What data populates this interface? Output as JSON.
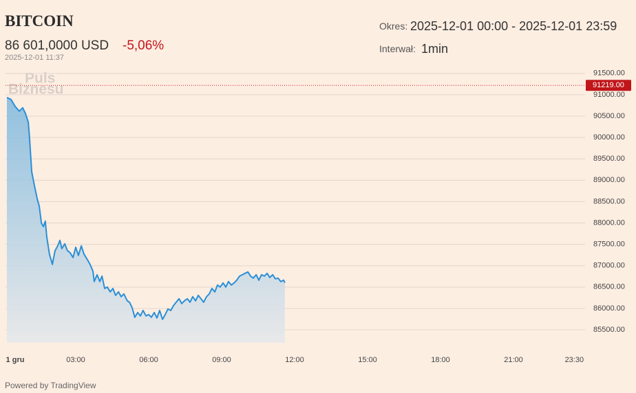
{
  "header": {
    "title": "BITCOIN",
    "price": "86 601,0000 USD",
    "change": "-5,06%",
    "timestamp": "2025-12-01 11:37",
    "period_label": "Okres:",
    "period": "2025-12-01 00:00 - 2025-12-01 23:59",
    "interval_label": "Interwał:",
    "interval": "1min"
  },
  "watermark": [
    "Puls",
    "Biznesu"
  ],
  "footer": "Powered by TradingView",
  "chart_data": {
    "type": "area",
    "color": "#2a8fd6",
    "grid": true,
    "x": [
      0.17,
      0.34,
      0.51,
      0.68,
      0.82,
      0.93,
      1.05,
      1.1,
      1.19,
      1.3,
      1.42,
      1.5,
      1.59,
      1.67,
      1.75,
      1.81,
      1.92,
      2.04,
      2.15,
      2.26,
      2.35,
      2.43,
      2.55,
      2.66,
      2.77,
      2.89,
      3.0,
      3.11,
      3.23,
      3.34,
      3.48,
      3.59,
      3.71,
      3.76,
      3.88,
      3.99,
      4.08,
      4.19,
      4.3,
      4.42,
      4.53,
      4.64,
      4.76,
      4.87,
      4.98,
      5.12,
      5.21,
      5.32,
      5.43,
      5.55,
      5.66,
      5.77,
      5.89,
      6.0,
      6.11,
      6.23,
      6.34,
      6.45,
      6.57,
      6.68,
      6.79,
      6.91,
      7.02,
      7.13,
      7.25,
      7.36,
      7.47,
      7.59,
      7.7,
      7.81,
      7.93,
      8.04,
      8.15,
      8.26,
      8.38,
      8.49,
      8.6,
      8.72,
      8.83,
      8.94,
      9.06,
      9.17,
      9.28,
      9.4,
      9.51,
      9.62,
      9.74,
      9.85,
      9.96,
      10.08,
      10.19,
      10.3,
      10.42,
      10.53,
      10.64,
      10.76,
      10.87,
      10.98,
      11.1,
      11.21,
      11.32,
      11.43,
      11.55,
      11.6
    ],
    "values": [
      90937,
      90889,
      90728,
      90616,
      90696,
      90568,
      90359,
      90005,
      89201,
      88879,
      88558,
      88397,
      87995,
      87915,
      88043,
      87674,
      87272,
      87031,
      87352,
      87465,
      87593,
      87400,
      87513,
      87352,
      87304,
      87191,
      87432,
      87240,
      87465,
      87272,
      87143,
      87031,
      86870,
      86629,
      86789,
      86629,
      86757,
      86468,
      86500,
      86388,
      86468,
      86307,
      86388,
      86275,
      86339,
      86178,
      86146,
      86018,
      85793,
      85905,
      85825,
      85953,
      85825,
      85857,
      85793,
      85905,
      85777,
      85953,
      85744,
      85857,
      85986,
      85953,
      86066,
      86146,
      86227,
      86114,
      86178,
      86227,
      86146,
      86275,
      86178,
      86307,
      86227,
      86146,
      86275,
      86339,
      86468,
      86388,
      86548,
      86500,
      86597,
      86500,
      86629,
      86548,
      86597,
      86661,
      86757,
      86789,
      86822,
      86854,
      86757,
      86709,
      86789,
      86661,
      86789,
      86757,
      86822,
      86725,
      86789,
      86693,
      86709,
      86629,
      86661,
      86601
    ],
    "xlim": [
      0,
      24
    ],
    "xticks": [
      {
        "value": 0,
        "label": "1 gru"
      },
      {
        "value": 3,
        "label": "03:00"
      },
      {
        "value": 6,
        "label": "06:00"
      },
      {
        "value": 9,
        "label": "09:00"
      },
      {
        "value": 12,
        "label": "12:00"
      },
      {
        "value": 15,
        "label": "15:00"
      },
      {
        "value": 18,
        "label": "18:00"
      },
      {
        "value": 21,
        "label": "21:00"
      },
      {
        "value": 23.5,
        "label": "23:30"
      }
    ],
    "ylim": [
      85200,
      91600
    ],
    "yticks": [
      {
        "value": 85500,
        "label": "85500.00"
      },
      {
        "value": 86000,
        "label": "86000.00"
      },
      {
        "value": 86500,
        "label": "86500.00"
      },
      {
        "value": 87000,
        "label": "87000.00"
      },
      {
        "value": 87500,
        "label": "87500.00"
      },
      {
        "value": 88000,
        "label": "88000.00"
      },
      {
        "value": 88500,
        "label": "88500.00"
      },
      {
        "value": 89000,
        "label": "89000.00"
      },
      {
        "value": 89500,
        "label": "89500.00"
      },
      {
        "value": 90000,
        "label": "90000.00"
      },
      {
        "value": 90500,
        "label": "90500.00"
      },
      {
        "value": 91000,
        "label": "91000.00"
      },
      {
        "value": 91500,
        "label": "91500.00"
      }
    ],
    "reference_line": {
      "value": 91219,
      "label": "91219.00",
      "color": "#c0161a"
    }
  }
}
